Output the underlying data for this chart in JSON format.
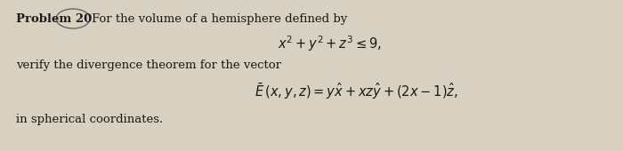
{
  "bg_color": "#d8d0c0",
  "text_color": "#1a1a1a",
  "problem_label": "Problem 20",
  "intro_text": "For the volume of a hemisphere defined by",
  "equation1": "$x^2 + y^2 + z^3 \\leq 9,$",
  "middle_text": "verify the divergence theorem for the vector",
  "equation2": "$\\bar{E}\\,(x, y, z) = y\\hat{x} + xz\\hat{y} + (2x-1)\\hat{z},$",
  "footer_text": "in spherical coordinates.",
  "fig_width": 7.0,
  "fig_height": 1.7,
  "dpi": 100
}
